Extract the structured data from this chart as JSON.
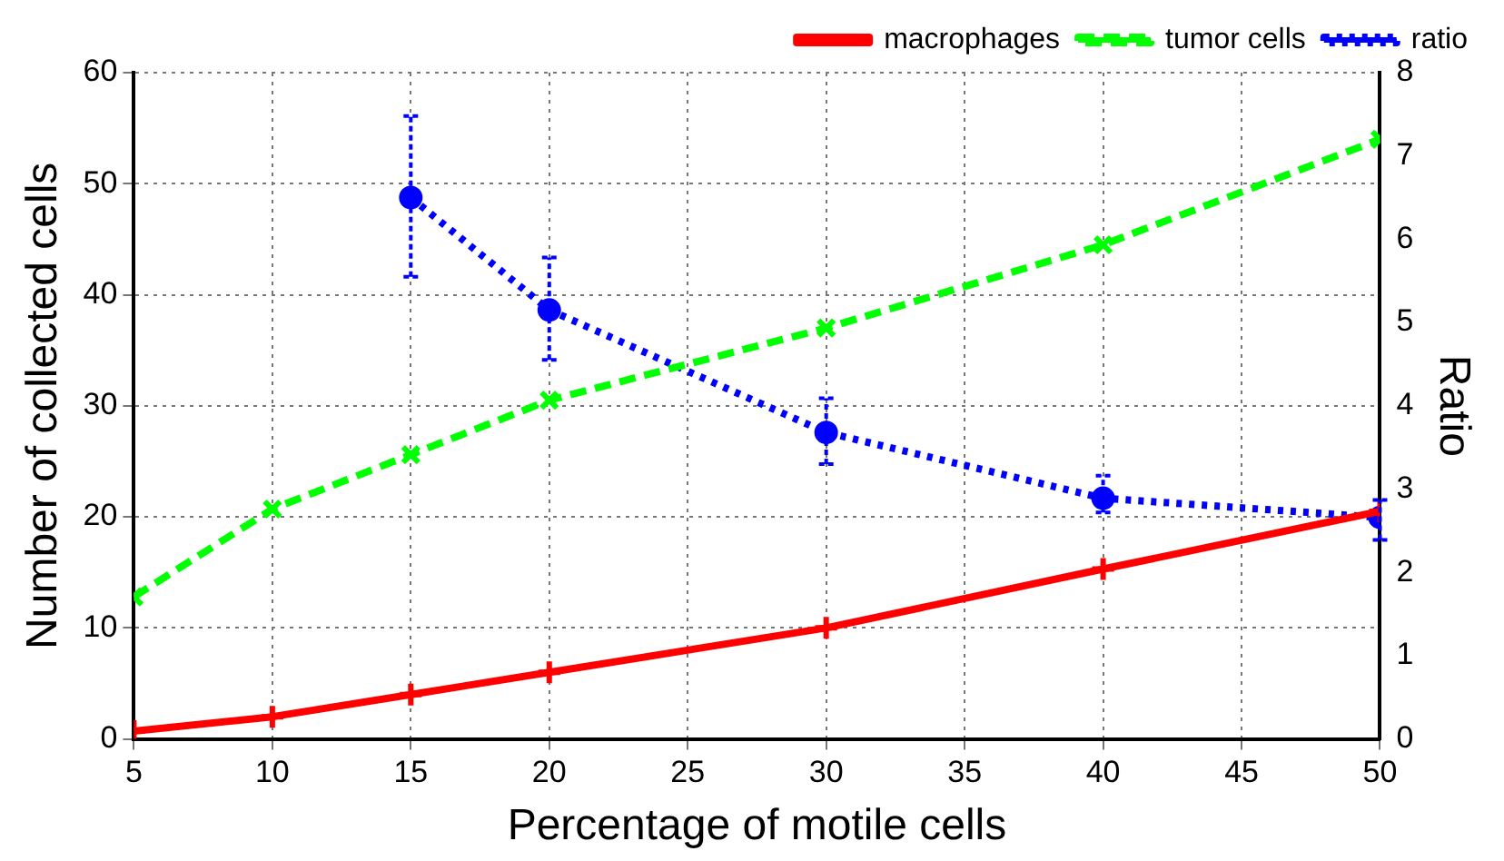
{
  "chart_data": {
    "type": "line",
    "xlabel": "Percentage of motile cells",
    "ylabel": "Number of collected cells",
    "y2label": "Ratio",
    "x": [
      5,
      10,
      15,
      20,
      30,
      40,
      50
    ],
    "xlim": [
      5,
      50
    ],
    "xticks": [
      5,
      10,
      15,
      20,
      25,
      30,
      35,
      40,
      45,
      50
    ],
    "ylim": [
      0,
      60
    ],
    "yticks": [
      0,
      10,
      20,
      30,
      40,
      50,
      60
    ],
    "y2lim": [
      0,
      8
    ],
    "y2ticks": [
      0,
      1,
      2,
      3,
      4,
      5,
      6,
      7,
      8
    ],
    "grid": true,
    "legend": "top right",
    "series": [
      {
        "name": "macrophages",
        "color": "#ff0000",
        "marker": "cross",
        "line_style": "solid",
        "values": [
          0.7,
          2,
          4,
          6,
          10,
          15.3,
          20.5
        ]
      },
      {
        "name": "tumor cells",
        "color": "#00ff00",
        "marker": "cross",
        "line_style": "dashed",
        "values": [
          12.8,
          20.7,
          25.6,
          30.5,
          37,
          44.5,
          54
        ]
      },
      {
        "name": "ratio",
        "color": "#0000ff",
        "marker": "circle",
        "line_style": "dotted",
        "axis": "y2",
        "values": [
          null,
          null,
          6.5,
          5.15,
          3.68,
          2.89,
          2.66
        ],
        "errors": [
          null,
          null,
          [
            5.55,
            7.48
          ],
          [
            4.55,
            5.78
          ],
          [
            3.3,
            4.09
          ],
          [
            2.72,
            3.16
          ],
          [
            2.39,
            2.87
          ]
        ]
      }
    ]
  }
}
